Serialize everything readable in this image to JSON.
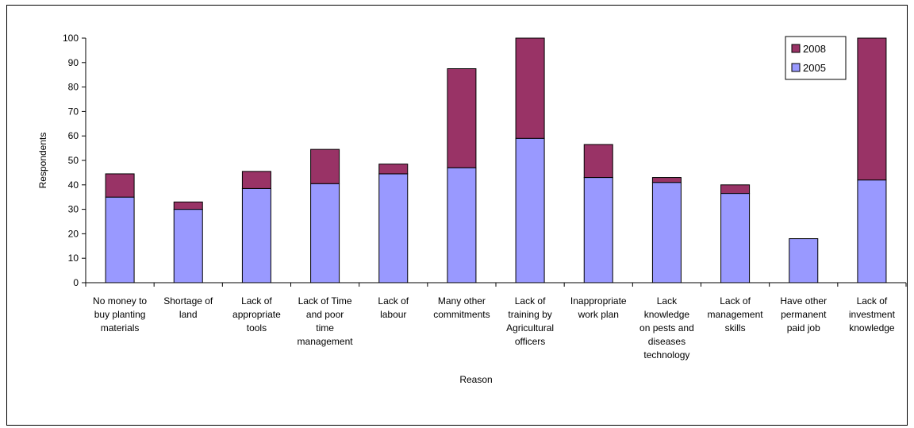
{
  "chart_data": {
    "type": "bar",
    "stacked": true,
    "title": "",
    "xlabel": "Reason",
    "ylabel": "Respondents",
    "ylim": [
      0,
      100
    ],
    "ytick_step": 10,
    "grid": false,
    "legend_position": "top-right",
    "categories": [
      "No money to buy planting materials",
      "Shortage of land",
      "Lack of appropriate tools",
      "Lack of Time and poor time management",
      "Lack of labour",
      "Many other commitments",
      "Lack of training by Agricultural officers",
      "Inappropriate work plan",
      "Lack knowledge on pests and diseases technology",
      "Lack of management skills",
      "Have other permanent paid job",
      "Lack of investment knowledge"
    ],
    "category_lines": [
      [
        "No money to",
        "buy planting",
        "materials"
      ],
      [
        "Shortage of",
        "land"
      ],
      [
        "Lack of",
        "appropriate",
        "tools"
      ],
      [
        "Lack of Time",
        "and poor",
        "time",
        "management"
      ],
      [
        "Lack of",
        "labour"
      ],
      [
        "Many other",
        "commitments"
      ],
      [
        "Lack of",
        "training by",
        "Agricultural",
        "officers"
      ],
      [
        "Inappropriate",
        "work plan"
      ],
      [
        "Lack",
        "knowledge",
        "on pests and",
        "diseases",
        "technology"
      ],
      [
        "Lack of",
        "management",
        "skills"
      ],
      [
        "Have other",
        "permanent",
        "paid job"
      ],
      [
        "Lack of",
        "investment",
        "knowledge"
      ]
    ],
    "series": [
      {
        "name": "2005",
        "color": "#9999ff",
        "values": [
          35,
          30,
          38.5,
          40.5,
          44.5,
          47,
          59,
          43,
          41,
          36.5,
          18,
          42
        ]
      },
      {
        "name": "2008",
        "color": "#993366",
        "values": [
          9.5,
          3,
          7,
          14,
          4,
          40.5,
          42,
          13.5,
          2,
          3.5,
          0,
          59
        ]
      }
    ],
    "legend_order": [
      "2008",
      "2005"
    ]
  }
}
